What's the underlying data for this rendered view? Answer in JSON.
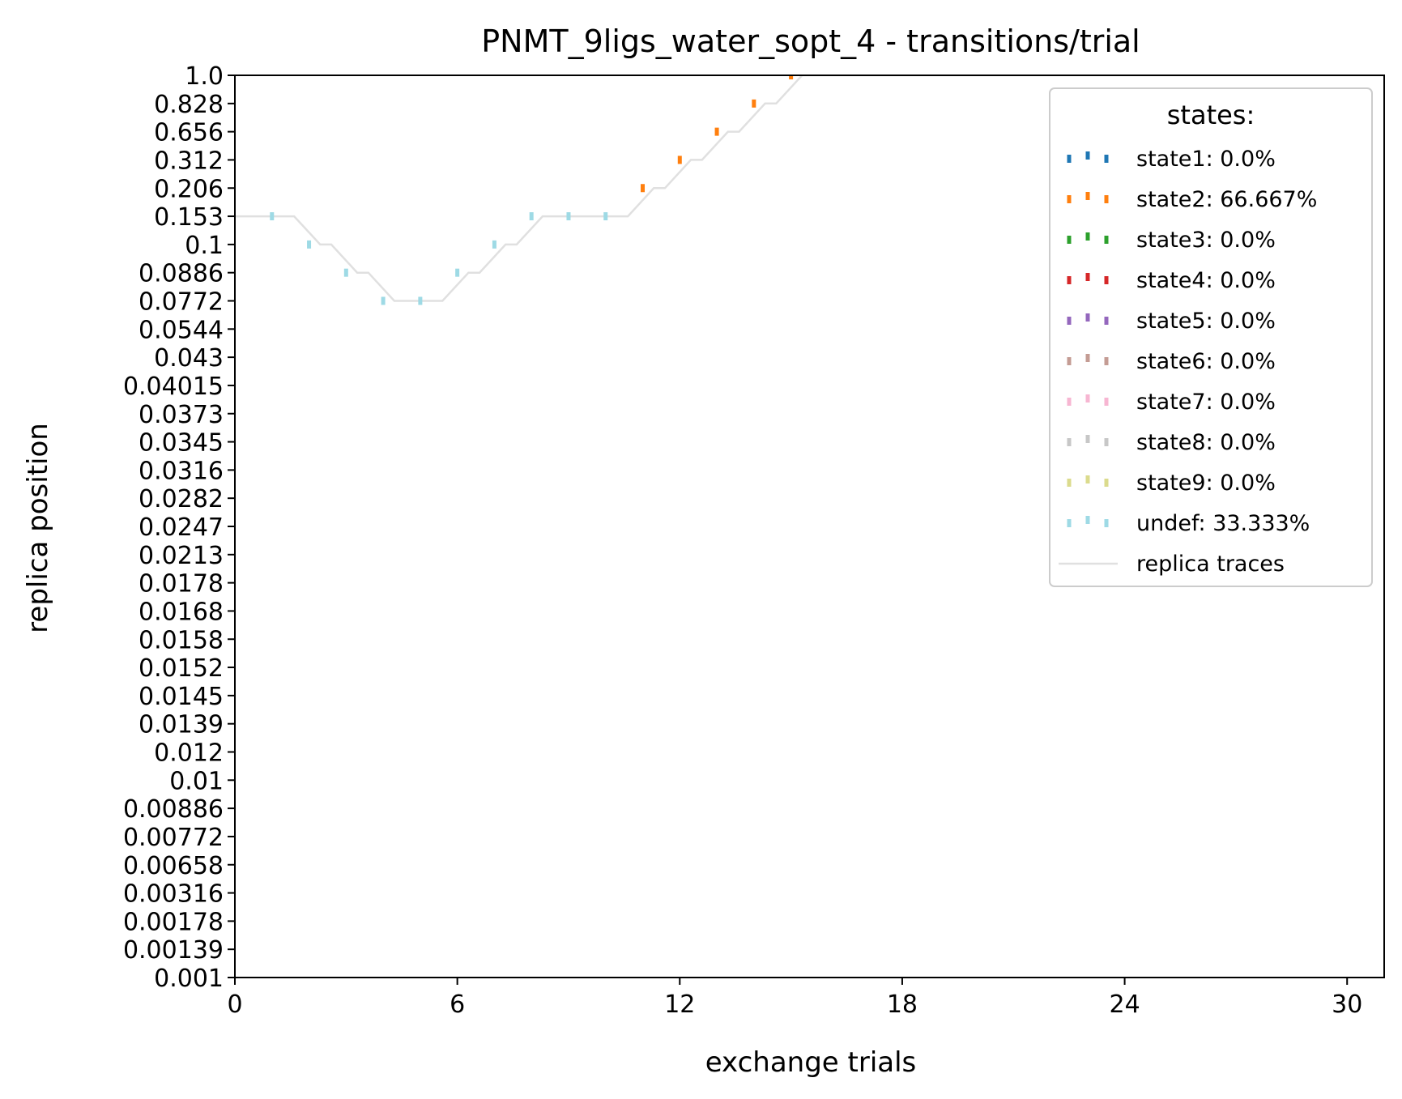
{
  "chart_data": {
    "type": "line",
    "title": "PNMT_9ligs_water_sopt_4 - transitions/trial",
    "xlabel": "exchange trials",
    "ylabel": "replica position",
    "xlim": [
      0,
      31
    ],
    "x_ticks": [
      "0",
      "6",
      "12",
      "18",
      "24",
      "30"
    ],
    "y_ticks": [
      "0.001",
      "0.00139",
      "0.00178",
      "0.00316",
      "0.00658",
      "0.00772",
      "0.00886",
      "0.01",
      "0.012",
      "0.0139",
      "0.0145",
      "0.0152",
      "0.0158",
      "0.0168",
      "0.0178",
      "0.0213",
      "0.0247",
      "0.0282",
      "0.0316",
      "0.0345",
      "0.0373",
      "0.04015",
      "0.043",
      "0.0544",
      "0.0772",
      "0.0886",
      "0.1",
      "0.153",
      "0.206",
      "0.312",
      "0.656",
      "0.828",
      "1.0"
    ],
    "grid": false,
    "legend": {
      "title": "states:",
      "placement": "top-right",
      "entries": [
        {
          "label": "state1: 0.0%",
          "color": "#1f77b4"
        },
        {
          "label": "state2: 66.667%",
          "color": "#ff7f0e"
        },
        {
          "label": "state3: 0.0%",
          "color": "#2ca02c"
        },
        {
          "label": "state4: 0.0%",
          "color": "#d62728"
        },
        {
          "label": "state5: 0.0%",
          "color": "#9467bd"
        },
        {
          "label": "state6: 0.0%",
          "color": "#c49c94"
        },
        {
          "label": "state7: 0.0%",
          "color": "#f7b6d2"
        },
        {
          "label": "state8: 0.0%",
          "color": "#c7c7c7"
        },
        {
          "label": "state9: 0.0%",
          "color": "#dbdb8d"
        },
        {
          "label": "undef: 33.333%",
          "color": "#9edae5"
        }
      ],
      "trace_label": "replica traces",
      "trace_color": "#e0e0e0"
    },
    "replica_trace": [
      [
        0,
        "0.153"
      ],
      [
        1.6,
        "0.153"
      ],
      [
        2.3,
        "0.1"
      ],
      [
        2.6,
        "0.1"
      ],
      [
        3.3,
        "0.0886"
      ],
      [
        3.6,
        "0.0886"
      ],
      [
        4.3,
        "0.0772"
      ],
      [
        5.6,
        "0.0772"
      ],
      [
        6.3,
        "0.0886"
      ],
      [
        6.6,
        "0.0886"
      ],
      [
        7.3,
        "0.1"
      ],
      [
        7.6,
        "0.1"
      ],
      [
        8.3,
        "0.153"
      ],
      [
        10.6,
        "0.153"
      ],
      [
        11.3,
        "0.206"
      ],
      [
        11.6,
        "0.206"
      ],
      [
        12.3,
        "0.312"
      ],
      [
        12.6,
        "0.312"
      ],
      [
        13.3,
        "0.656"
      ],
      [
        13.6,
        "0.656"
      ],
      [
        14.3,
        "0.828"
      ],
      [
        14.6,
        "0.828"
      ],
      [
        15.3,
        "1.0"
      ],
      [
        31,
        "1.0"
      ]
    ],
    "markers": [
      {
        "x": 1,
        "y": "0.153",
        "state": "undef"
      },
      {
        "x": 2,
        "y": "0.1",
        "state": "undef"
      },
      {
        "x": 3,
        "y": "0.0886",
        "state": "undef"
      },
      {
        "x": 4,
        "y": "0.0772",
        "state": "undef"
      },
      {
        "x": 5,
        "y": "0.0772",
        "state": "undef"
      },
      {
        "x": 6,
        "y": "0.0886",
        "state": "undef"
      },
      {
        "x": 7,
        "y": "0.1",
        "state": "undef"
      },
      {
        "x": 8,
        "y": "0.153",
        "state": "undef"
      },
      {
        "x": 9,
        "y": "0.153",
        "state": "undef"
      },
      {
        "x": 10,
        "y": "0.153",
        "state": "undef"
      },
      {
        "x": 11,
        "y": "0.206",
        "state": "state2"
      },
      {
        "x": 12,
        "y": "0.312",
        "state": "state2"
      },
      {
        "x": 13,
        "y": "0.656",
        "state": "state2"
      },
      {
        "x": 14,
        "y": "0.828",
        "state": "state2"
      },
      {
        "x": 15,
        "y": "1.0",
        "state": "state2"
      }
    ]
  }
}
